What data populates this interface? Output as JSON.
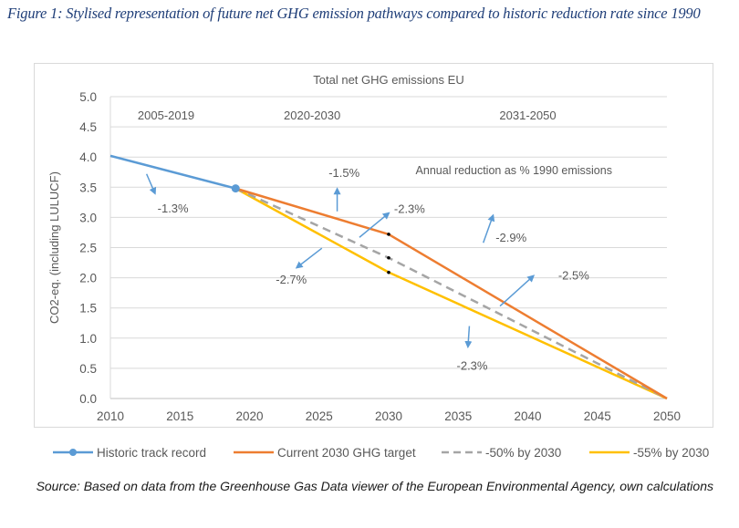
{
  "figure_caption": "Figure 1: Stylised representation of future net GHG emission pathways compared to historic reduction rate since 1990",
  "source_note": "Source: Based on data from the Greenhouse Gas Data viewer of the European Environmental Agency, own calculations",
  "chart_data": {
    "type": "line",
    "title": "Total net GHG emissions EU",
    "xlabel": "",
    "ylabel": "CO2-eq. (including LULUCF)",
    "xlim": [
      2010,
      2050
    ],
    "ylim": [
      0.0,
      5.0
    ],
    "x_ticks": [
      "2010",
      "2015",
      "2020",
      "2025",
      "2030",
      "2035",
      "2040",
      "2045",
      "2050"
    ],
    "y_ticks": [
      "0.0",
      "0.5",
      "1.0",
      "1.5",
      "2.0",
      "2.5",
      "3.0",
      "3.5",
      "4.0",
      "4.5",
      "5.0"
    ],
    "grid": true,
    "legend_position": "bottom",
    "series": [
      {
        "name": "Historic track record",
        "color": "#5b9bd5",
        "style": "solid-marker",
        "points": [
          [
            2010,
            4.02
          ],
          [
            2019,
            3.48
          ]
        ]
      },
      {
        "name": "Current 2030 GHG target",
        "color": "#ed7d31",
        "style": "solid",
        "points": [
          [
            2019,
            3.48
          ],
          [
            2030,
            2.72
          ],
          [
            2050,
            0.0
          ]
        ]
      },
      {
        "name": "-50% by 2030",
        "color": "#a5a5a5",
        "style": "dashed",
        "points": [
          [
            2019,
            3.48
          ],
          [
            2030,
            2.33
          ],
          [
            2050,
            0.0
          ]
        ]
      },
      {
        "name": "-55% by 2030",
        "color": "#ffc000",
        "style": "solid",
        "points": [
          [
            2019,
            3.48
          ],
          [
            2030,
            2.09
          ],
          [
            2050,
            0.0
          ]
        ]
      }
    ],
    "period_labels": [
      {
        "text": "2005-2019",
        "x": 2014,
        "y": 4.7
      },
      {
        "text": "2020-2030",
        "x": 2024.5,
        "y": 4.7
      },
      {
        "text": "2031-2050",
        "x": 2040,
        "y": 4.7
      }
    ],
    "annotation_title": {
      "text": "Annual reduction as % 1990 emissions",
      "x": 2039,
      "y": 3.78
    },
    "annotations": [
      {
        "text": "-1.3%",
        "x": 2014.5,
        "y": 3.16,
        "arrow_from": [
          2012.6,
          3.72
        ],
        "arrow_to": [
          2013.2,
          3.4
        ]
      },
      {
        "text": "-1.5%",
        "x": 2026.8,
        "y": 3.75,
        "arrow_from": [
          2026.3,
          3.1
        ],
        "arrow_to": [
          2026.3,
          3.47
        ]
      },
      {
        "text": "-2.3%",
        "x": 2031.5,
        "y": 3.15,
        "arrow_from": [
          2027.9,
          2.67
        ],
        "arrow_to": [
          2030.0,
          3.07
        ]
      },
      {
        "text": "-2.7%",
        "x": 2023.0,
        "y": 1.98,
        "arrow_from": [
          2025.2,
          2.49
        ],
        "arrow_to": [
          2023.4,
          2.17
        ]
      },
      {
        "text": "-2.9%",
        "x": 2038.8,
        "y": 2.67,
        "arrow_from": [
          2036.8,
          2.58
        ],
        "arrow_to": [
          2037.5,
          3.03
        ]
      },
      {
        "text": "-2.5%",
        "x": 2043.3,
        "y": 2.05,
        "arrow_from": [
          2038.0,
          1.53
        ],
        "arrow_to": [
          2040.4,
          2.03
        ]
      },
      {
        "text": "-2.3%",
        "x": 2036.0,
        "y": 0.55,
        "arrow_from": [
          2035.8,
          1.2
        ],
        "arrow_to": [
          2035.7,
          0.86
        ]
      }
    ]
  }
}
